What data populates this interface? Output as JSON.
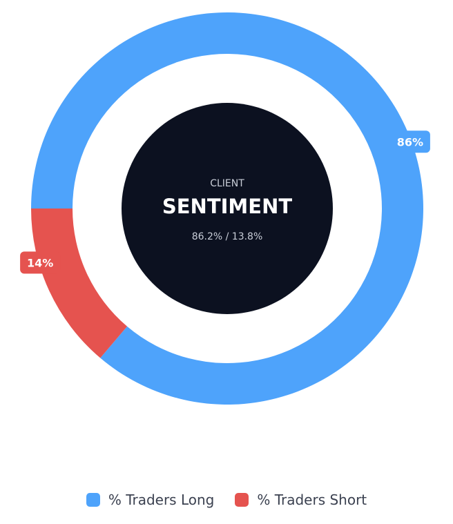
{
  "chart_data": {
    "type": "donut",
    "series": [
      {
        "name": "% Traders Long",
        "value": 86.2,
        "label": "86%",
        "color": "#4ea3fb"
      },
      {
        "name": "% Traders Short",
        "value": 13.8,
        "label": "14%",
        "color": "#e5534f"
      }
    ],
    "center": {
      "subtitle": "CLIENT",
      "title": "SENTIMENT",
      "ratio": "86.2% / 13.8%",
      "background": "#0c1120"
    },
    "legend": {
      "placement": "bottom",
      "items": [
        {
          "label": "% Traders Long",
          "color": "#4ea3fb"
        },
        {
          "label": "% Traders Short",
          "color": "#e5534f"
        }
      ]
    }
  }
}
